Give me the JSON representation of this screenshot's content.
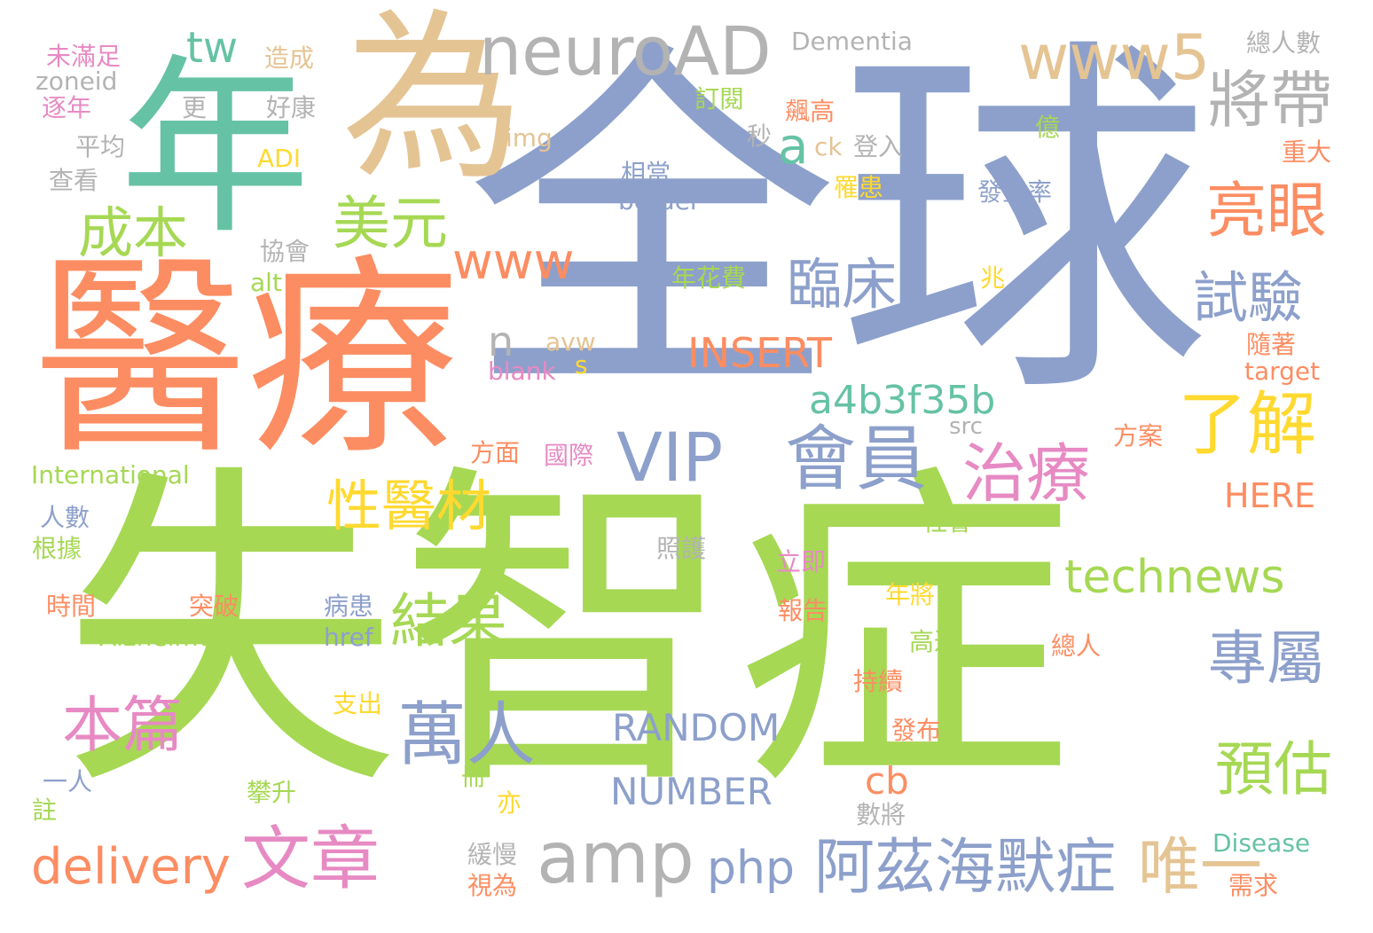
{
  "palette": {
    "green": "#A6D854",
    "blue": "#8DA0CB",
    "orange": "#FC8D62",
    "teal": "#66C2A5",
    "tan": "#E5C494",
    "gray": "#B3B3B3",
    "pink": "#E78AC3",
    "yellow": "#FFD92F"
  },
  "words": [
    "失智症",
    "全球",
    "醫療",
    "年",
    "為",
    "neuroAD",
    "www5",
    "將帶",
    "tw",
    "美元",
    "成本",
    "亮眼",
    "www",
    "a",
    "臨床",
    "試驗",
    "n",
    "INSERT",
    "a4b3f35b",
    "了解",
    "VIP",
    "會員",
    "治療",
    "性醫材",
    "結果",
    "technews",
    "專屬",
    "萬人",
    "本篇",
    "RANDOM",
    "NUMBER",
    "預估",
    "cb",
    "amp",
    "php",
    "阿茲海默症",
    "唯一",
    "文章",
    "delivery",
    "HERE",
    "Dementia",
    "總人數",
    "未滿足",
    "造成",
    "zoneid",
    "逐年",
    "更",
    "好康",
    "平均",
    "查看",
    "img",
    "ADI",
    "訂閱",
    "飆高",
    "秒",
    "億",
    "ck",
    "登入",
    "重大",
    "相當",
    "border",
    "罹患",
    "發生率",
    "協會",
    "alt",
    "年花費",
    "兆",
    "avw",
    "s",
    "blank",
    "隨著",
    "target",
    "src",
    "方案",
    "方面",
    "國際",
    "International",
    "人數",
    "根據",
    "社會",
    "照護",
    "立即",
    "時間",
    "突破",
    "病患",
    "年將",
    "報告",
    "href",
    "Alzheimer",
    "高達",
    "總人",
    "持續",
    "支出",
    "發布",
    "一人",
    "冊",
    "攀升",
    "亦",
    "註",
    "數將",
    "緩慢",
    "視為",
    "需求",
    "Disease"
  ]
}
